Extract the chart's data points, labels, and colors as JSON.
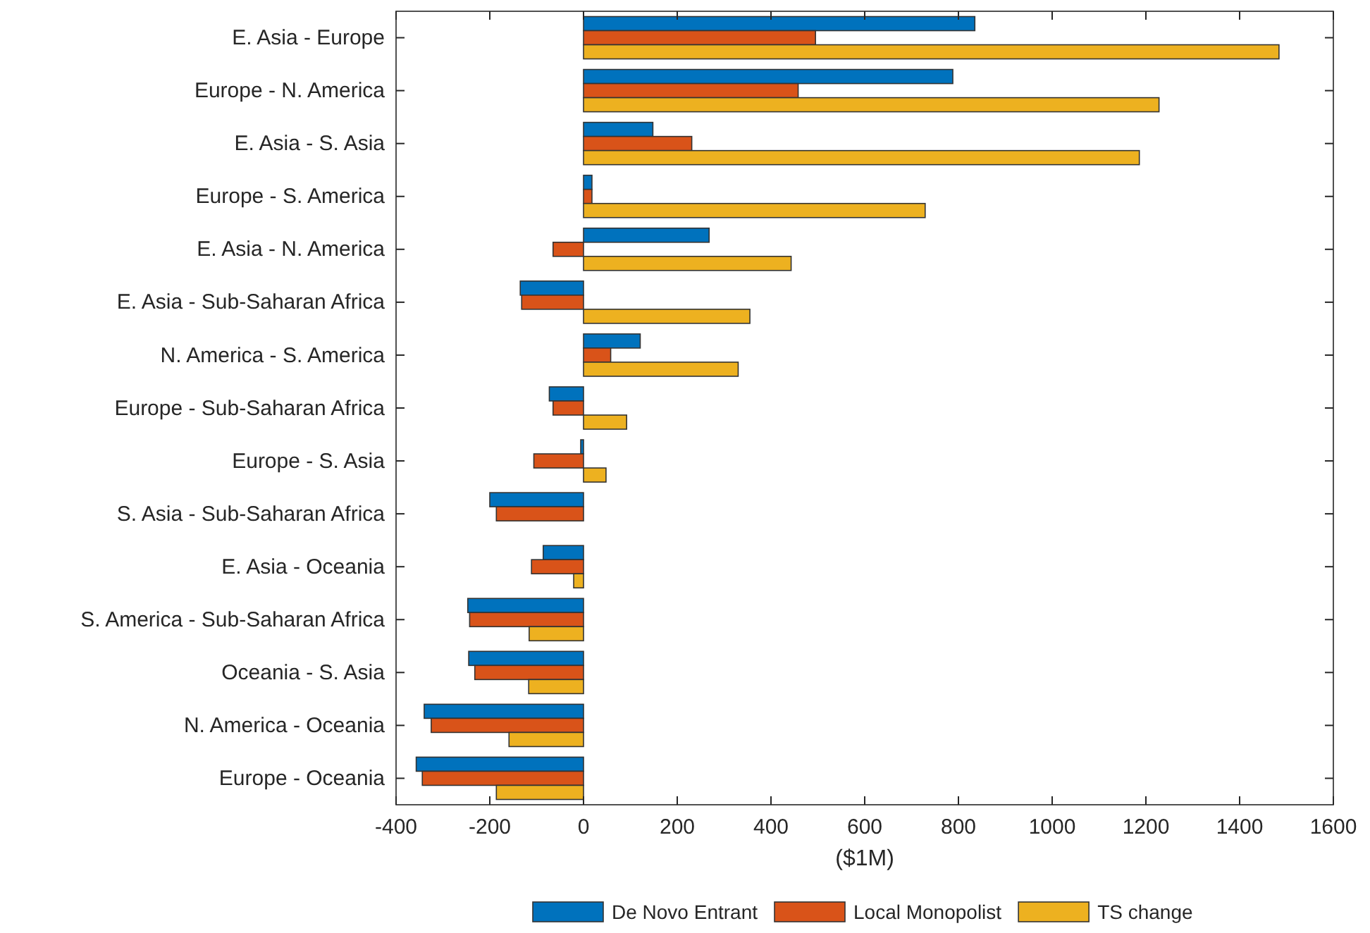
{
  "chart_data": {
    "type": "bar",
    "orientation": "horizontal",
    "xlabel": "($1M)",
    "categories": [
      "E. Asia - Europe",
      "Europe - N. America",
      "E. Asia - S. Asia",
      "Europe - S. America",
      "E. Asia - N. America",
      "E. Asia - Sub-Saharan Africa",
      "N. America - S. America",
      "Europe - Sub-Saharan Africa",
      "Europe - S. Asia",
      "S. Asia - Sub-Saharan Africa",
      "E. Asia - Oceania",
      "S. America - Sub-Saharan Africa",
      "Oceania - S. Asia",
      "N. America - Oceania",
      "Europe - Oceania"
    ],
    "series": [
      {
        "name": "De Novo Entrant",
        "color": "#0072bd",
        "values": [
          835,
          788,
          148,
          18,
          268,
          -135,
          121,
          -73,
          -6,
          -200,
          -86,
          -247,
          -245,
          -340,
          -357
        ]
      },
      {
        "name": "Local Monopolist",
        "color": "#d95319",
        "values": [
          495,
          458,
          231,
          18,
          -65,
          -132,
          58,
          -65,
          -106,
          -186,
          -111,
          -243,
          -232,
          -325,
          -344
        ]
      },
      {
        "name": "TS change",
        "color": "#edb120",
        "values": [
          1484,
          1228,
          1186,
          729,
          443,
          355,
          330,
          92,
          48,
          null,
          -21,
          -116,
          -117,
          -159,
          -186
        ]
      }
    ],
    "xlim": [
      -400,
      1600
    ],
    "xticks": [
      -400,
      -200,
      0,
      200,
      400,
      600,
      800,
      1000,
      1200,
      1400,
      1600
    ],
    "grid": false,
    "legend": "bottom"
  }
}
